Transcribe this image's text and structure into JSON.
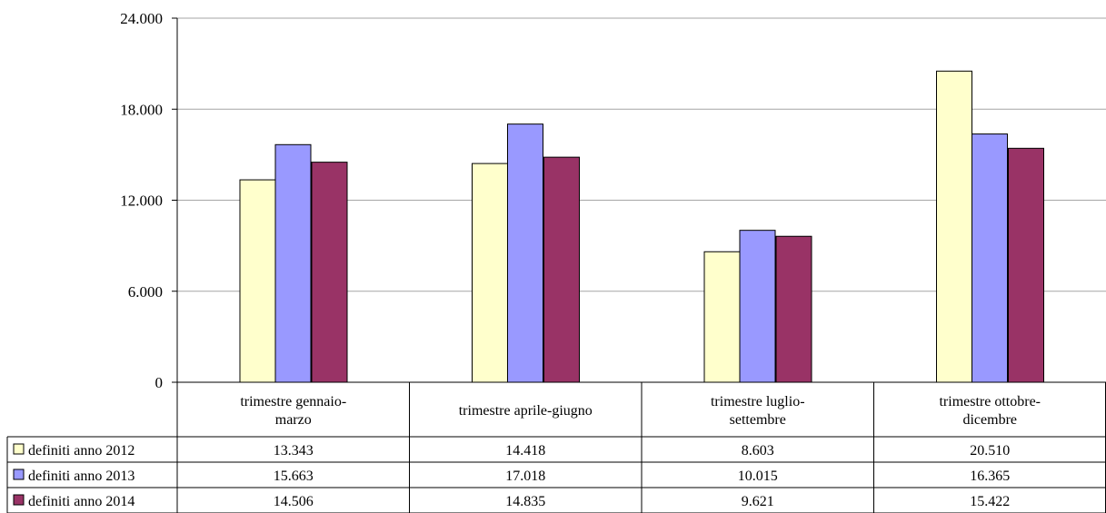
{
  "chart_data": {
    "type": "bar",
    "title": "",
    "xlabel": "",
    "ylabel": "",
    "ylim": [
      0,
      24000
    ],
    "yticks": [
      "0",
      "6.000",
      "12.000",
      "18.000",
      "24.000"
    ],
    "ytick_values": [
      0,
      6000,
      12000,
      18000,
      24000
    ],
    "grid": true,
    "legend": "data-table-left",
    "categories": [
      [
        "trimestre gennaio-",
        "marzo"
      ],
      [
        "trimestre aprile-giugno"
      ],
      [
        "trimestre luglio-",
        "settembre"
      ],
      [
        "trimestre ottobre-",
        "dicembre"
      ]
    ],
    "series": [
      {
        "name": "definiti anno 2012",
        "color": "#FFFFCC",
        "values": [
          13343,
          14418,
          8603,
          20510
        ],
        "labels": [
          "13.343",
          "14.418",
          "8.603",
          "20.510"
        ]
      },
      {
        "name": "definiti anno 2013",
        "color": "#9999FF",
        "values": [
          15663,
          17018,
          10015,
          16365
        ],
        "labels": [
          "15.663",
          "17.018",
          "10.015",
          "16.365"
        ]
      },
      {
        "name": "definiti anno 2014",
        "color": "#993366",
        "values": [
          14506,
          14835,
          9621,
          15422
        ],
        "labels": [
          "14.506",
          "14.835",
          "9.621",
          "15.422"
        ]
      }
    ]
  }
}
